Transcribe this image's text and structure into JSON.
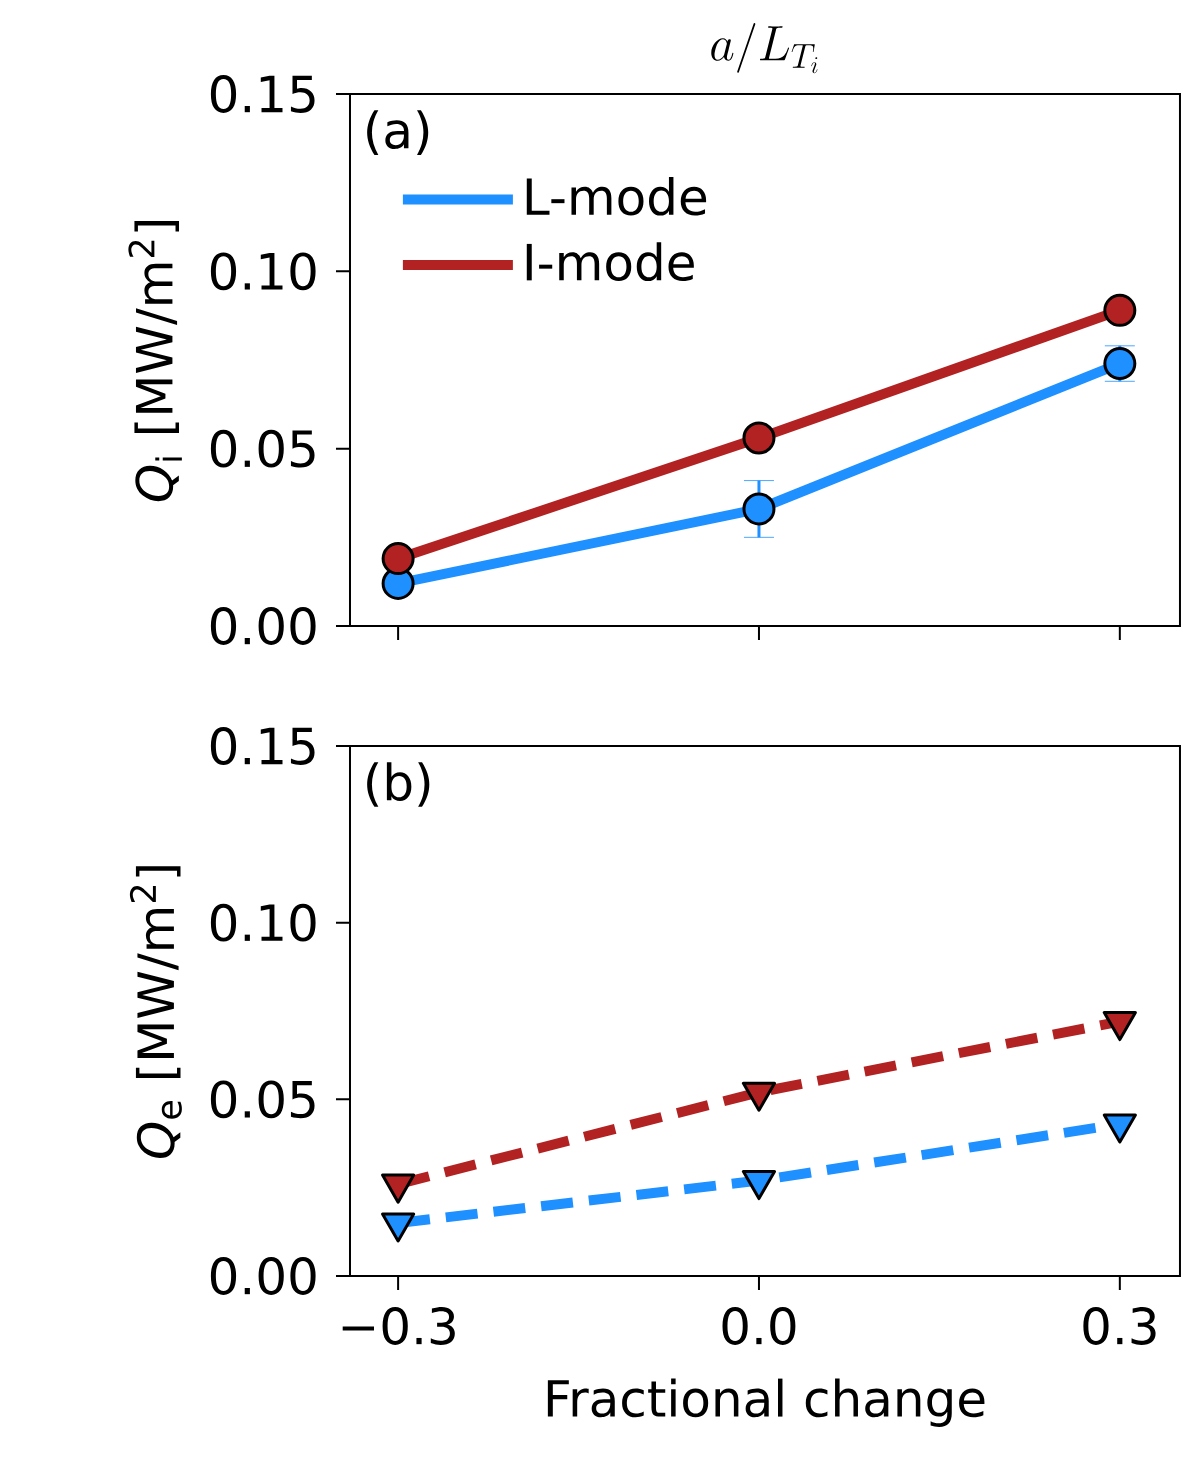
{
  "chart_data": [
    {
      "type": "line",
      "title": "a/L_{T_i}",
      "ylabel": "*Q*$_{i}$ [MW/m$^{2}$]",
      "annotations": [
        "(a)"
      ],
      "x": [
        -0.3,
        0,
        0.3
      ],
      "xlim": [
        -0.34,
        0.35
      ],
      "ylim": [
        0,
        0.15
      ],
      "xticks": [
        {
          "value": -0.3,
          "label": null
        },
        {
          "value": 0,
          "label": null
        },
        {
          "value": 0.3,
          "label": null
        }
      ],
      "yticks": [
        {
          "value": 0,
          "label": "0.00"
        },
        {
          "value": 0.05,
          "label": "0.05"
        },
        {
          "value": 0.1,
          "label": "0.10"
        },
        {
          "value": 0.15,
          "label": "0.15"
        }
      ],
      "tick_labels": "y",
      "legend": "top left",
      "marker": "circle",
      "line_style": "solid",
      "grid": false,
      "series": [
        {
          "name": "L-mode",
          "color": "#1e90ff",
          "values": [
            0.012,
            0.033,
            0.074
          ],
          "errors": [
            null,
            0.008,
            0.005
          ]
        },
        {
          "name": "I-mode",
          "color": "#b22222",
          "values": [
            0.019,
            0.053,
            0.089
          ]
        }
      ]
    },
    {
      "type": "line",
      "xlabel": "Fractional change",
      "ylabel": "*Q*$_{e}$ [MW/m$^{2}$]",
      "annotations": [
        "(b)"
      ],
      "x": [
        -0.3,
        0,
        0.3
      ],
      "xlim": [
        -0.34,
        0.35
      ],
      "ylim": [
        0,
        0.15
      ],
      "xticks": [
        {
          "value": -0.3,
          "label": "−0.3"
        },
        {
          "value": 0,
          "label": "0.0"
        },
        {
          "value": 0.3,
          "label": "0.3"
        }
      ],
      "yticks": [
        {
          "value": 0,
          "label": "0.00"
        },
        {
          "value": 0.05,
          "label": "0.05"
        },
        {
          "value": 0.1,
          "label": "0.10"
        },
        {
          "value": 0.15,
          "label": "0.15"
        }
      ],
      "marker": "triangle",
      "line_style": "dashed",
      "grid": false,
      "series": [
        {
          "color": "#b22222",
          "values": [
            0.026,
            0.052,
            0.072
          ]
        },
        {
          "color": "#1e90ff",
          "values": [
            0.015,
            0.027,
            0.043
          ]
        }
      ]
    }
  ]
}
